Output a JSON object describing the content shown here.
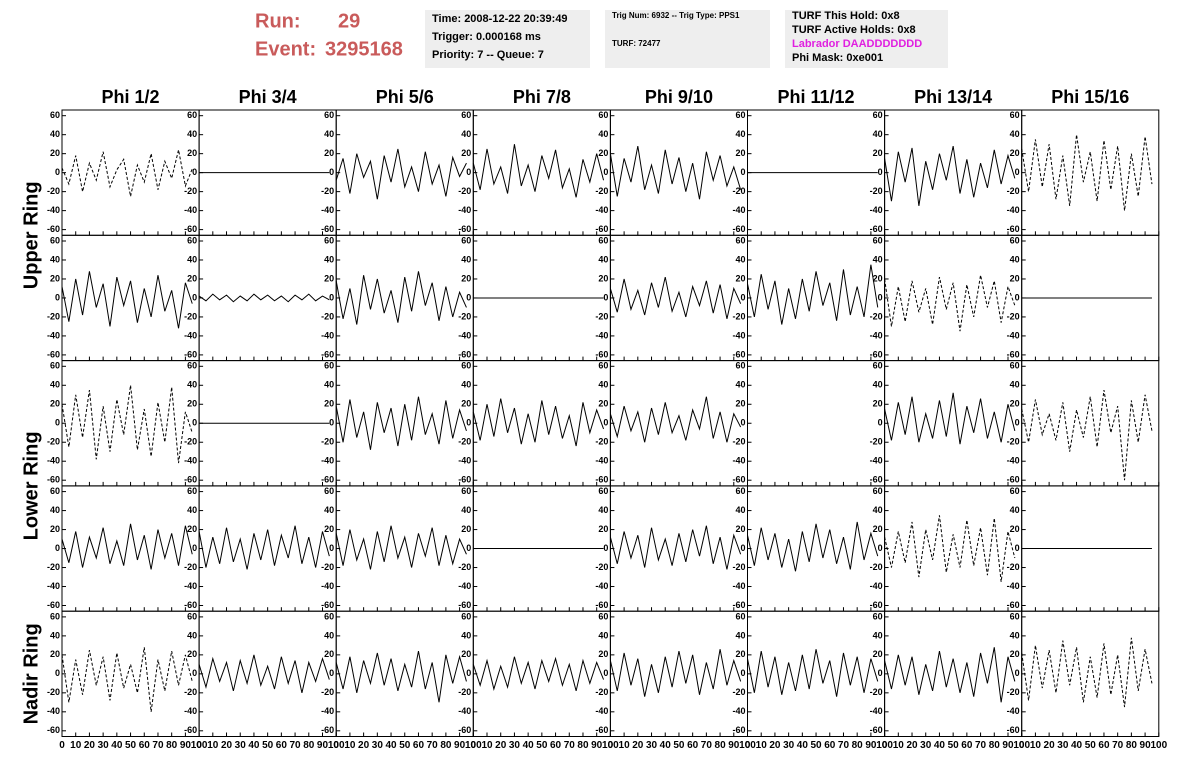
{
  "header": {
    "run_label": "Run:",
    "run": 29,
    "event_label": "Event:",
    "event": 3295168,
    "box1": [
      "Time: 2008-12-22 20:39:49",
      "Trigger: 0.000168 ms",
      "Priority: 7 -- Queue: 7"
    ],
    "box2": [
      "Trig Num: 6932 -- Trig Type: PPS1",
      "TURF: 72477"
    ],
    "box3": [
      "TURF This Hold: 0x8",
      "TURF Active Holds: 0x8",
      "Labrador DAADDDDDDD",
      "Phi Mask: 0xe001"
    ]
  },
  "columns": [
    "Phi 1/2",
    "Phi 3/4",
    "Phi 5/6",
    "Phi 7/8",
    "Phi 9/10",
    "Phi 11/12",
    "Phi 13/14",
    "Phi 15/16"
  ],
  "rings": [
    "Upper Ring",
    "Lower Ring",
    "Nadir Ring"
  ],
  "grid": {
    "xlim": [
      0,
      100
    ],
    "ylim": [
      -66,
      66
    ],
    "xticks": [
      0,
      10,
      20,
      30,
      40,
      50,
      60,
      70,
      80,
      90,
      100
    ],
    "yticks": [
      -60,
      -40,
      -20,
      0,
      20,
      40,
      60
    ],
    "x": [
      0,
      5,
      10,
      15,
      20,
      25,
      30,
      35,
      40,
      45,
      50,
      55,
      60,
      65,
      70,
      75,
      80,
      85,
      90,
      95
    ],
    "rows": [
      [
        {
          "style": "dashed",
          "values": [
            5,
            -12,
            18,
            -20,
            10,
            -8,
            22,
            -15,
            3,
            14,
            -25,
            8,
            -10,
            20,
            -18,
            12,
            -6,
            24,
            -14,
            4
          ]
        },
        {
          "style": "solid",
          "values": [
            0,
            0,
            0,
            0,
            0,
            0,
            0,
            0,
            0,
            0,
            0,
            0,
            0,
            0,
            0,
            0,
            0,
            0,
            0,
            0
          ]
        },
        {
          "style": "solid",
          "values": [
            -8,
            15,
            -22,
            20,
            -5,
            12,
            -28,
            18,
            -10,
            25,
            -15,
            6,
            -20,
            22,
            -12,
            8,
            -25,
            16,
            -4,
            10
          ]
        },
        {
          "style": "solid",
          "values": [
            10,
            -18,
            25,
            -12,
            6,
            -22,
            30,
            -14,
            8,
            -20,
            18,
            -6,
            24,
            -16,
            4,
            -26,
            14,
            -10,
            20,
            -8
          ]
        },
        {
          "style": "solid",
          "values": [
            20,
            -25,
            15,
            -10,
            28,
            -18,
            8,
            -22,
            24,
            -12,
            16,
            -20,
            10,
            -28,
            22,
            -8,
            18,
            -14,
            6,
            -18
          ]
        },
        {
          "style": "solid",
          "values": [
            0,
            0,
            0,
            0,
            0,
            0,
            0,
            0,
            0,
            0,
            0,
            0,
            0,
            0,
            0,
            0,
            0,
            0,
            0,
            0
          ]
        },
        {
          "style": "solid",
          "values": [
            15,
            -30,
            22,
            -10,
            26,
            -35,
            12,
            -18,
            20,
            -8,
            28,
            -22,
            14,
            -26,
            10,
            -16,
            24,
            -12,
            18,
            -6
          ]
        },
        {
          "style": "dashed",
          "values": [
            25,
            -20,
            35,
            -15,
            30,
            -28,
            18,
            -35,
            40,
            -10,
            22,
            -30,
            34,
            -18,
            28,
            -40,
            20,
            -25,
            38,
            -12
          ]
        }
      ],
      [
        {
          "style": "solid",
          "values": [
            12,
            -25,
            20,
            -18,
            28,
            -10,
            15,
            -30,
            22,
            -8,
            18,
            -26,
            10,
            -20,
            24,
            -14,
            8,
            -32,
            16,
            -6
          ]
        },
        {
          "style": "solid",
          "values": [
            2,
            -3,
            4,
            -2,
            3,
            -4,
            2,
            -3,
            4,
            -2,
            3,
            -3,
            2,
            -4,
            3,
            -2,
            4,
            -3,
            2,
            -2
          ]
        },
        {
          "style": "solid",
          "values": [
            18,
            -22,
            10,
            -28,
            24,
            -12,
            20,
            -16,
            8,
            -26,
            22,
            -14,
            28,
            -8,
            16,
            -24,
            12,
            -20,
            6,
            -10
          ]
        },
        {
          "style": "solid",
          "values": [
            0,
            0,
            0,
            0,
            0,
            0,
            0,
            0,
            0,
            0,
            0,
            0,
            0,
            0,
            0,
            0,
            0,
            0,
            0,
            0
          ]
        },
        {
          "style": "solid",
          "values": [
            10,
            -15,
            20,
            -12,
            8,
            -18,
            16,
            -10,
            22,
            -14,
            6,
            -20,
            12,
            -8,
            18,
            -16,
            14,
            -22,
            10,
            -6
          ]
        },
        {
          "style": "solid",
          "values": [
            15,
            -20,
            25,
            -12,
            18,
            -28,
            10,
            -22,
            20,
            -14,
            28,
            -8,
            16,
            -24,
            30,
            -18,
            12,
            -20,
            35,
            -10
          ]
        },
        {
          "style": "dashed",
          "values": [
            20,
            -30,
            12,
            -25,
            18,
            -15,
            10,
            -28,
            22,
            -12,
            16,
            -35,
            14,
            -20,
            24,
            -10,
            18,
            -26,
            12,
            -8
          ]
        },
        {
          "style": "solid",
          "values": [
            0,
            0,
            0,
            0,
            0,
            0,
            0,
            0,
            0,
            0,
            0,
            0,
            0,
            0,
            0,
            0,
            0,
            0,
            0,
            0
          ]
        }
      ],
      [
        {
          "style": "dashed",
          "values": [
            20,
            -25,
            30,
            -15,
            35,
            -38,
            18,
            -30,
            25,
            -12,
            40,
            -28,
            15,
            -35,
            22,
            -20,
            38,
            -42,
            12,
            -10
          ]
        },
        {
          "style": "solid",
          "values": [
            0,
            0,
            0,
            0,
            0,
            0,
            0,
            0,
            0,
            0,
            0,
            0,
            0,
            0,
            0,
            0,
            0,
            0,
            0,
            0
          ]
        },
        {
          "style": "solid",
          "values": [
            18,
            -20,
            25,
            -15,
            12,
            -28,
            22,
            -10,
            16,
            -24,
            20,
            -18,
            28,
            -12,
            10,
            -22,
            24,
            -16,
            14,
            -8
          ]
        },
        {
          "style": "solid",
          "values": [
            12,
            -18,
            20,
            -14,
            26,
            -10,
            16,
            -22,
            10,
            -20,
            24,
            -12,
            18,
            -16,
            8,
            -24,
            22,
            -10,
            14,
            -6
          ]
        },
        {
          "style": "solid",
          "values": [
            10,
            -14,
            18,
            -8,
            12,
            -20,
            16,
            -12,
            22,
            -10,
            8,
            -18,
            14,
            -6,
            28,
            -16,
            12,
            -20,
            10,
            -4
          ]
        },
        {
          "style": "empty",
          "values": []
        },
        {
          "style": "solid",
          "values": [
            15,
            -18,
            22,
            -12,
            28,
            -20,
            10,
            -16,
            24,
            -14,
            32,
            -22,
            18,
            -10,
            26,
            -16,
            12,
            -20,
            20,
            -8
          ]
        },
        {
          "style": "dashed",
          "values": [
            15,
            -20,
            25,
            -12,
            10,
            -18,
            22,
            -30,
            14,
            -15,
            28,
            -25,
            35,
            -10,
            18,
            -60,
            24,
            -20,
            30,
            -8
          ]
        }
      ],
      [
        {
          "style": "solid",
          "values": [
            10,
            -15,
            18,
            -20,
            12,
            -10,
            22,
            -16,
            8,
            -18,
            26,
            -12,
            14,
            -22,
            20,
            -10,
            16,
            -18,
            24,
            -6
          ]
        },
        {
          "style": "solid",
          "values": [
            18,
            -20,
            12,
            -16,
            22,
            -14,
            10,
            -22,
            16,
            -12,
            20,
            -18,
            14,
            -10,
            24,
            -16,
            12,
            -20,
            18,
            -8
          ]
        },
        {
          "style": "solid",
          "values": [
            16,
            -18,
            20,
            -12,
            10,
            -22,
            18,
            -14,
            24,
            -10,
            12,
            -20,
            16,
            -8,
            22,
            -18,
            14,
            -16,
            10,
            -6
          ]
        },
        {
          "style": "solid",
          "values": [
            0,
            0,
            0,
            0,
            0,
            0,
            0,
            0,
            0,
            0,
            0,
            0,
            0,
            0,
            0,
            0,
            0,
            0,
            0,
            0
          ]
        },
        {
          "style": "solid",
          "values": [
            12,
            -16,
            18,
            -10,
            14,
            -20,
            22,
            -12,
            10,
            -18,
            16,
            -14,
            20,
            -8,
            24,
            -16,
            12,
            -22,
            14,
            -6
          ]
        },
        {
          "style": "solid",
          "values": [
            14,
            -18,
            22,
            -12,
            16,
            -20,
            10,
            -24,
            18,
            -14,
            26,
            -10,
            20,
            -16,
            12,
            -22,
            28,
            -12,
            16,
            -8
          ]
        },
        {
          "style": "dashed",
          "values": [
            12,
            -20,
            18,
            -15,
            28,
            -30,
            20,
            -12,
            35,
            -25,
            15,
            -20,
            30,
            -18,
            22,
            -28,
            32,
            -35,
            18,
            -10
          ]
        },
        {
          "style": "solid",
          "values": [
            0,
            0,
            0,
            0,
            0,
            0,
            0,
            0,
            0,
            0,
            0,
            0,
            0,
            0,
            0,
            0,
            0,
            0,
            0,
            0
          ]
        }
      ],
      [
        {
          "style": "dashed",
          "values": [
            20,
            -30,
            15,
            -22,
            25,
            -12,
            18,
            -28,
            22,
            -15,
            10,
            -20,
            28,
            -40,
            15,
            -18,
            24,
            -12,
            20,
            -8
          ]
        },
        {
          "style": "solid",
          "values": [
            10,
            -14,
            16,
            -8,
            12,
            -18,
            14,
            -10,
            20,
            -12,
            8,
            -16,
            18,
            -10,
            14,
            -20,
            12,
            -8,
            16,
            -6
          ]
        },
        {
          "style": "solid",
          "values": [
            12,
            -16,
            18,
            -20,
            14,
            -10,
            22,
            -12,
            16,
            -18,
            10,
            -14,
            24,
            -16,
            12,
            -30,
            20,
            -10,
            18,
            -8
          ]
        },
        {
          "style": "solid",
          "values": [
            10,
            -12,
            14,
            -16,
            8,
            -14,
            18,
            -10,
            12,
            -16,
            14,
            -8,
            16,
            -12,
            10,
            -18,
            14,
            -10,
            12,
            -6
          ]
        },
        {
          "style": "solid",
          "values": [
            14,
            -18,
            22,
            -12,
            16,
            -24,
            10,
            -20,
            18,
            -14,
            24,
            -10,
            20,
            -22,
            12,
            -16,
            26,
            -12,
            14,
            -8
          ]
        },
        {
          "style": "solid",
          "values": [
            16,
            -20,
            24,
            -14,
            18,
            -22,
            12,
            -18,
            20,
            -16,
            26,
            -10,
            14,
            -24,
            22,
            -12,
            18,
            -20,
            16,
            -8
          ]
        },
        {
          "style": "solid",
          "values": [
            14,
            -16,
            20,
            -12,
            18,
            -22,
            10,
            -18,
            24,
            -14,
            16,
            -20,
            12,
            -24,
            22,
            -10,
            28,
            -30,
            18,
            -8
          ]
        },
        {
          "style": "dashed",
          "values": [
            22,
            -28,
            30,
            -15,
            25,
            -20,
            35,
            -12,
            28,
            -30,
            18,
            -25,
            32,
            -22,
            20,
            -35,
            38,
            -18,
            26,
            -10
          ]
        }
      ]
    ]
  }
}
